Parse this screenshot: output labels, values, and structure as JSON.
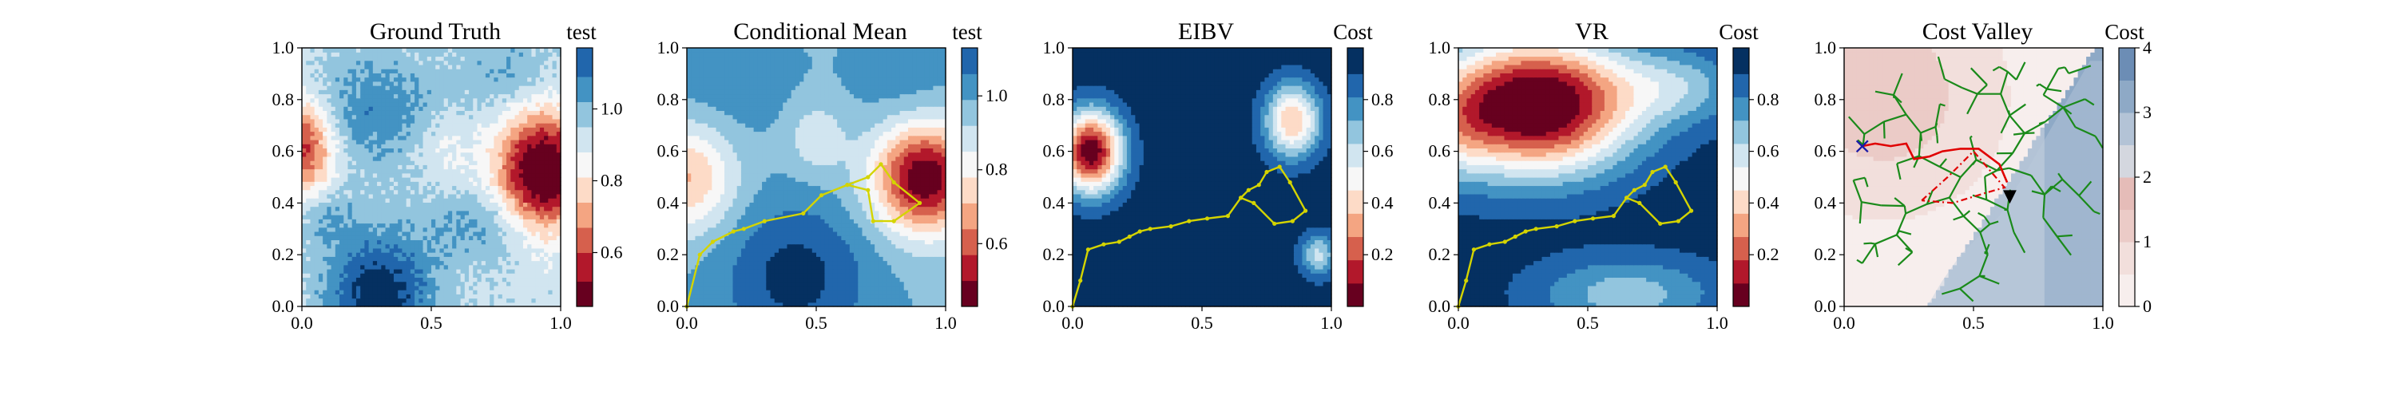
{
  "figure": {
    "background": "#ffffff"
  },
  "chart_data": [
    {
      "type": "heatmap",
      "title": "Ground Truth",
      "xlabel": "",
      "ylabel": "",
      "xlim": [
        0,
        1
      ],
      "ylim": [
        0,
        1
      ],
      "xticks": [
        "0.0",
        "0.5",
        "1.0"
      ],
      "yticks": [
        "0.0",
        "0.2",
        "0.4",
        "0.6",
        "0.8",
        "1.0"
      ],
      "field": {
        "base": 0.93,
        "blobs": [
          {
            "cx": 0.93,
            "cy": 0.52,
            "sx": 0.12,
            "sy": 0.16,
            "a": -0.55
          },
          {
            "cx": 0.0,
            "cy": 0.62,
            "sx": 0.09,
            "sy": 0.13,
            "a": -0.38
          },
          {
            "cx": 0.3,
            "cy": 0.05,
            "sx": 0.14,
            "sy": 0.16,
            "a": 0.3
          },
          {
            "cx": 0.28,
            "cy": 0.75,
            "sx": 0.2,
            "sy": 0.16,
            "a": 0.14
          },
          {
            "cx": 0.72,
            "cy": 0.32,
            "sx": 0.16,
            "sy": 0.1,
            "a": 0.12
          },
          {
            "cx": 0.1,
            "cy": 0.35,
            "sx": 0.07,
            "sy": 0.08,
            "a": 0.1
          },
          {
            "cx": 0.8,
            "cy": 0.9,
            "sx": 0.12,
            "sy": 0.1,
            "a": 0.1
          },
          {
            "cx": 0.55,
            "cy": 0.62,
            "sx": 0.1,
            "sy": 0.1,
            "a": -0.08
          }
        ],
        "noise": 0.03
      },
      "colorbar": {
        "label": "test",
        "levels": [
          0.45,
          0.52,
          0.6,
          0.67,
          0.74,
          0.81,
          0.88,
          0.95,
          1.02,
          1.09,
          1.17
        ],
        "colors": [
          "#67001f",
          "#b2182b",
          "#d6604d",
          "#f4a582",
          "#fddbc7",
          "#f7f7f7",
          "#d1e5f0",
          "#92c5de",
          "#4393c3",
          "#2166ac",
          "#053061"
        ],
        "ticks": [
          0.6,
          0.8,
          1.0
        ],
        "tick_labels": [
          "0.6",
          "0.8",
          "1.0"
        ]
      },
      "path": null
    },
    {
      "type": "heatmap",
      "title": "Conditional Mean",
      "xlabel": "",
      "ylabel": "",
      "xlim": [
        0,
        1
      ],
      "ylim": [
        0,
        1
      ],
      "xticks": [
        "0.0",
        "0.5",
        "1.0"
      ],
      "yticks": [
        "0.0",
        "0.2",
        "0.4",
        "0.6",
        "0.8",
        "1.0"
      ],
      "field": {
        "base": 0.98,
        "blobs": [
          {
            "cx": 0.92,
            "cy": 0.5,
            "sx": 0.14,
            "sy": 0.15,
            "a": -0.55
          },
          {
            "cx": 0.0,
            "cy": 0.5,
            "sx": 0.13,
            "sy": 0.15,
            "a": -0.28
          },
          {
            "cx": 0.42,
            "cy": 0.12,
            "sx": 0.2,
            "sy": 0.2,
            "a": 0.18
          },
          {
            "cx": 0.5,
            "cy": 0.65,
            "sx": 0.08,
            "sy": 0.1,
            "a": -0.12
          },
          {
            "cx": 0.15,
            "cy": 0.85,
            "sx": 0.18,
            "sy": 0.15,
            "a": 0.06
          },
          {
            "cx": 0.85,
            "cy": 0.85,
            "sx": 0.15,
            "sy": 0.15,
            "a": 0.06
          }
        ],
        "noise": 0.0
      },
      "colorbar": {
        "label": "test",
        "levels": [
          0.43,
          0.5,
          0.57,
          0.64,
          0.71,
          0.78,
          0.85,
          0.92,
          0.99,
          1.06,
          1.13
        ],
        "colors": [
          "#67001f",
          "#b2182b",
          "#d6604d",
          "#f4a582",
          "#fddbc7",
          "#f7f7f7",
          "#d1e5f0",
          "#92c5de",
          "#4393c3",
          "#2166ac",
          "#053061"
        ],
        "ticks": [
          0.6,
          0.8,
          1.0
        ],
        "tick_labels": [
          "0.6",
          "0.8",
          "1.0"
        ]
      },
      "path": {
        "color": "#d4d400",
        "points": [
          [
            0.0,
            0.0
          ],
          [
            0.05,
            0.2
          ],
          [
            0.1,
            0.25
          ],
          [
            0.18,
            0.29
          ],
          [
            0.22,
            0.3
          ],
          [
            0.3,
            0.33
          ],
          [
            0.45,
            0.36
          ],
          [
            0.52,
            0.43
          ],
          [
            0.62,
            0.47
          ],
          [
            0.7,
            0.5
          ],
          [
            0.75,
            0.55
          ],
          [
            0.8,
            0.48
          ],
          [
            0.9,
            0.4
          ],
          [
            0.8,
            0.33
          ],
          [
            0.72,
            0.33
          ],
          [
            0.7,
            0.45
          ],
          [
            0.62,
            0.47
          ]
        ]
      }
    },
    {
      "type": "heatmap",
      "title": "EIBV",
      "xlabel": "",
      "ylabel": "",
      "xlim": [
        0,
        1
      ],
      "ylim": [
        0,
        1
      ],
      "xticks": [
        "0.0",
        "0.5",
        "1.0"
      ],
      "yticks": [
        "0.0",
        "0.2",
        "0.4",
        "0.6",
        "0.8",
        "1.0"
      ],
      "field": {
        "base": 0.96,
        "blobs": [
          {
            "cx": 0.07,
            "cy": 0.6,
            "sx": 0.085,
            "sy": 0.11,
            "a": -0.95
          },
          {
            "cx": 0.85,
            "cy": 0.72,
            "sx": 0.075,
            "sy": 0.1,
            "a": -0.6
          },
          {
            "cx": 0.95,
            "cy": 0.2,
            "sx": 0.05,
            "sy": 0.06,
            "a": -0.35
          }
        ],
        "noise": 0.0
      },
      "colorbar": {
        "label": "Cost",
        "levels": [
          0.0,
          0.09,
          0.18,
          0.27,
          0.36,
          0.45,
          0.54,
          0.63,
          0.72,
          0.81,
          0.9,
          1.0
        ],
        "colors": [
          "#67001f",
          "#b2182b",
          "#d6604d",
          "#f4a582",
          "#fddbc7",
          "#f7f7f7",
          "#d1e5f0",
          "#92c5de",
          "#4393c3",
          "#2166ac",
          "#053061"
        ],
        "ticks": [
          0.2,
          0.4,
          0.6,
          0.8
        ],
        "tick_labels": [
          "0.2",
          "0.4",
          "0.6",
          "0.8"
        ]
      },
      "path": {
        "color": "#d4d400",
        "points": [
          [
            0.0,
            0.0
          ],
          [
            0.03,
            0.1
          ],
          [
            0.06,
            0.22
          ],
          [
            0.12,
            0.24
          ],
          [
            0.18,
            0.25
          ],
          [
            0.22,
            0.27
          ],
          [
            0.26,
            0.29
          ],
          [
            0.3,
            0.3
          ],
          [
            0.38,
            0.31
          ],
          [
            0.45,
            0.33
          ],
          [
            0.52,
            0.34
          ],
          [
            0.6,
            0.35
          ],
          [
            0.65,
            0.42
          ],
          [
            0.68,
            0.45
          ],
          [
            0.72,
            0.47
          ],
          [
            0.75,
            0.52
          ],
          [
            0.8,
            0.54
          ],
          [
            0.84,
            0.48
          ],
          [
            0.9,
            0.37
          ],
          [
            0.85,
            0.33
          ],
          [
            0.78,
            0.32
          ],
          [
            0.7,
            0.4
          ],
          [
            0.65,
            0.42
          ]
        ]
      }
    },
    {
      "type": "heatmap",
      "title": "VR",
      "xlabel": "",
      "ylabel": "",
      "xlim": [
        0,
        1
      ],
      "ylim": [
        0,
        1
      ],
      "xticks": [
        "0.0",
        "0.5",
        "1.0"
      ],
      "yticks": [
        "0.0",
        "0.2",
        "0.4",
        "0.6",
        "0.8",
        "1.0"
      ],
      "field": {
        "base": 0.95,
        "blobs": [
          {
            "cx": 0.3,
            "cy": 0.78,
            "sx": 0.26,
            "sy": 0.18,
            "a": -1.05
          },
          {
            "cx": 0.85,
            "cy": 0.85,
            "sx": 0.18,
            "sy": 0.1,
            "a": -0.25
          },
          {
            "cx": 0.0,
            "cy": 0.7,
            "sx": 0.1,
            "sy": 0.15,
            "a": -0.2
          },
          {
            "cx": 0.65,
            "cy": 0.05,
            "sx": 0.25,
            "sy": 0.1,
            "a": -0.28
          }
        ],
        "noise": 0.0
      },
      "colorbar": {
        "label": "Cost",
        "levels": [
          0.0,
          0.09,
          0.18,
          0.27,
          0.36,
          0.45,
          0.54,
          0.63,
          0.72,
          0.81,
          0.9,
          1.0
        ],
        "colors": [
          "#67001f",
          "#b2182b",
          "#d6604d",
          "#f4a582",
          "#fddbc7",
          "#f7f7f7",
          "#d1e5f0",
          "#92c5de",
          "#4393c3",
          "#2166ac",
          "#053061"
        ],
        "ticks": [
          0.2,
          0.4,
          0.6,
          0.8
        ],
        "tick_labels": [
          "0.2",
          "0.4",
          "0.6",
          "0.8"
        ]
      },
      "path": {
        "color": "#d4d400",
        "points": [
          [
            0.0,
            0.0
          ],
          [
            0.03,
            0.1
          ],
          [
            0.06,
            0.22
          ],
          [
            0.12,
            0.24
          ],
          [
            0.18,
            0.25
          ],
          [
            0.22,
            0.27
          ],
          [
            0.26,
            0.29
          ],
          [
            0.3,
            0.3
          ],
          [
            0.38,
            0.31
          ],
          [
            0.45,
            0.33
          ],
          [
            0.52,
            0.34
          ],
          [
            0.6,
            0.35
          ],
          [
            0.65,
            0.42
          ],
          [
            0.68,
            0.45
          ],
          [
            0.72,
            0.47
          ],
          [
            0.75,
            0.52
          ],
          [
            0.8,
            0.54
          ],
          [
            0.84,
            0.48
          ],
          [
            0.9,
            0.37
          ],
          [
            0.85,
            0.33
          ],
          [
            0.78,
            0.32
          ],
          [
            0.7,
            0.4
          ],
          [
            0.65,
            0.42
          ]
        ]
      }
    },
    {
      "type": "heatmap",
      "title": "Cost Valley",
      "xlabel": "",
      "ylabel": "",
      "xlim": [
        0,
        1
      ],
      "ylim": [
        0,
        1
      ],
      "xticks": [
        "0.0",
        "0.5",
        "1.0"
      ],
      "yticks": [
        "0.0",
        "0.2",
        "0.4",
        "0.6",
        "0.8",
        "1.0"
      ],
      "cost_valley": {
        "base": 0.35,
        "upper_left": 1.1,
        "lower_right": 2.95,
        "obstacle_color": "#bbcbdd",
        "obstacle_fill_opacity": 0.4
      },
      "colorbar": {
        "label": "Cost",
        "levels": [
          0,
          0.5,
          1.0,
          1.5,
          2.0,
          2.5,
          3.0,
          3.5,
          4.0
        ],
        "colors": [
          "#f7eeed",
          "#f2dfdc",
          "#ebcbc7",
          "#e5bcb8",
          "#d4d7df",
          "#b3c3d6",
          "#8ea9c6",
          "#6c8db5"
        ],
        "ticks": [
          0,
          1,
          2,
          3,
          4
        ],
        "tick_labels": [
          "0",
          "1",
          "2",
          "3",
          "4"
        ]
      },
      "tree": {
        "color": "#1a8a1a"
      },
      "route": {
        "color": "#e00000",
        "points": [
          [
            0.07,
            0.62
          ],
          [
            0.12,
            0.63
          ],
          [
            0.18,
            0.62
          ],
          [
            0.24,
            0.63
          ],
          [
            0.27,
            0.57
          ],
          [
            0.33,
            0.58
          ],
          [
            0.38,
            0.6
          ],
          [
            0.45,
            0.61
          ],
          [
            0.52,
            0.61
          ],
          [
            0.6,
            0.55
          ],
          [
            0.63,
            0.48
          ]
        ]
      },
      "dashed_route": {
        "color": "#e00000",
        "points": [
          [
            0.3,
            0.41
          ],
          [
            0.4,
            0.5
          ],
          [
            0.5,
            0.6
          ],
          [
            0.62,
            0.46
          ],
          [
            0.55,
            0.44
          ],
          [
            0.42,
            0.4
          ],
          [
            0.3,
            0.41
          ]
        ]
      },
      "start_marker": {
        "symbol": "×",
        "color": "#1a1aa8",
        "x": 0.07,
        "y": 0.62
      },
      "end_marker": {
        "symbol": "▼",
        "color": "#000000",
        "x": 0.64,
        "y": 0.43
      }
    }
  ]
}
